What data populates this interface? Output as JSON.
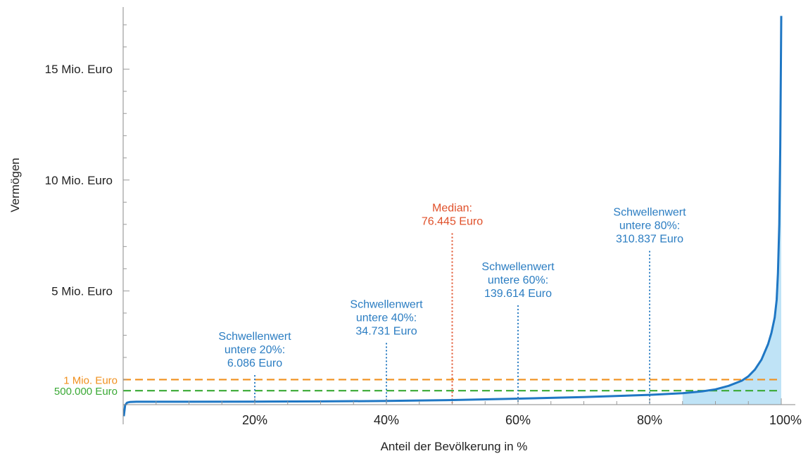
{
  "chart_data": {
    "type": "area",
    "title": "",
    "xlabel": "Anteil der Bevölkerung in %",
    "ylabel": "Vermögen",
    "xlim": [
      0,
      100
    ],
    "ylim": [
      -700000,
      17800000
    ],
    "x_ticks": [
      {
        "value": 20,
        "label": "20%"
      },
      {
        "value": 40,
        "label": "40%"
      },
      {
        "value": 60,
        "label": "60%"
      },
      {
        "value": 80,
        "label": "80%"
      },
      {
        "value": 100,
        "label": "100%"
      }
    ],
    "y_ticks": [
      {
        "value": 5000000,
        "label": "5 Mio. Euro"
      },
      {
        "value": 10000000,
        "label": "10 Mio. Euro"
      },
      {
        "value": 15000000,
        "label": "15 Mio. Euro"
      }
    ],
    "grid": false,
    "series": [
      {
        "color": "#1f77c4",
        "fill": "#bfe3f6",
        "x": [
          0.1,
          0.3,
          0.6,
          1,
          2,
          5,
          10,
          20,
          30,
          40,
          50,
          60,
          70,
          80,
          85,
          88,
          90,
          92,
          94,
          95,
          96,
          97,
          98,
          98.5,
          99,
          99.3,
          99.5,
          99.7,
          99.85,
          100
        ],
        "y": [
          -650000,
          -150000,
          -40000,
          -10000,
          0,
          300,
          1500,
          6086,
          18000,
          34731,
          76445,
          139614,
          210000,
          310837,
          390000,
          470000,
          560000,
          720000,
          950000,
          1150000,
          1450000,
          1900000,
          2600000,
          3100000,
          3800000,
          4600000,
          5800000,
          8000000,
          11500000,
          17400000
        ]
      }
    ],
    "reference_lines": [
      {
        "label": "1 Mio. Euro",
        "value": 1000000,
        "color": "#f0901e"
      },
      {
        "label": "500.000 Euro",
        "value": 500000,
        "color": "#3aa935"
      }
    ],
    "annotations": [
      {
        "x": 20,
        "lines": [
          "Schwellenwert",
          "untere 20%:",
          "6.086 Euro"
        ],
        "line_top": 1200000,
        "color": "#2b7dc2"
      },
      {
        "x": 40,
        "lines": [
          "Schwellenwert",
          "untere 40%:",
          "34.731 Euro"
        ],
        "line_top": 2650000,
        "color": "#2b7dc2"
      },
      {
        "x": 50,
        "lines": [
          "Median:",
          "76.445 Euro"
        ],
        "line_top": 7600000,
        "color": "#e0502a"
      },
      {
        "x": 60,
        "lines": [
          "Schwellenwert",
          "untere 60%:",
          "139.614 Euro"
        ],
        "line_top": 4350000,
        "color": "#2b7dc2"
      },
      {
        "x": 80,
        "lines": [
          "Schwellenwert",
          "untere 80%:",
          "310.837 Euro"
        ],
        "line_top": 6800000,
        "color": "#2b7dc2"
      }
    ]
  }
}
